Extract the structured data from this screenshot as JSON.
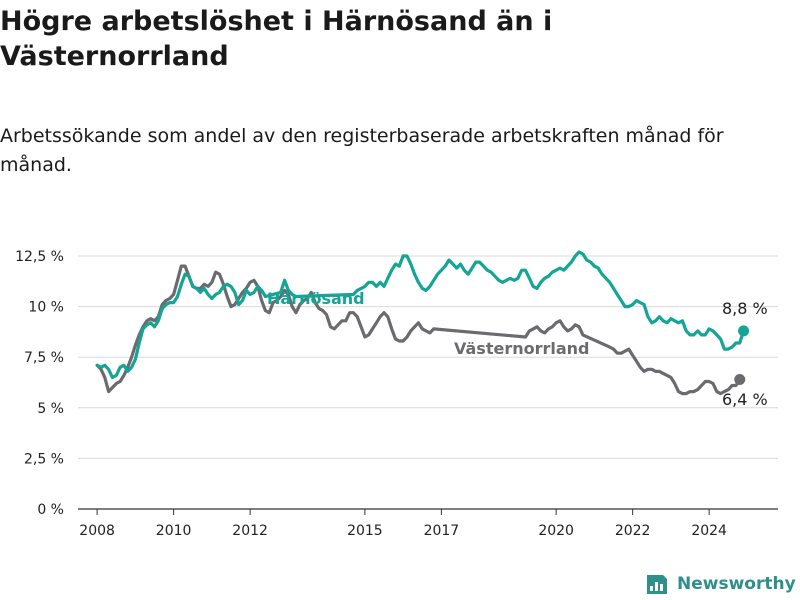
{
  "title": "Högre arbetslöshet i Härnösand än i Västernorrland",
  "subtitle": "Arbetssökande som andel av den registerbaserade arbetskraften månad för månad.",
  "brand": {
    "name": "Newsworthy",
    "icon": "newsworthy-logo-icon"
  },
  "colors": {
    "harnosand": "#14a596",
    "vasternorrland": "#6b6b6f",
    "grid": "#d9d9d9",
    "axis": "#333333"
  },
  "chart_data": {
    "type": "line",
    "title": "",
    "xlabel": "",
    "ylabel": "",
    "xlim": [
      2007.5,
      2025.8
    ],
    "ylim": [
      0,
      12.5
    ],
    "grid": true,
    "y_ticks": [
      {
        "value": 0,
        "label": "0 %"
      },
      {
        "value": 2.5,
        "label": "2,5 %"
      },
      {
        "value": 5,
        "label": "5 %"
      },
      {
        "value": 7.5,
        "label": "7,5 %"
      },
      {
        "value": 10,
        "label": "10 %"
      },
      {
        "value": 12.5,
        "label": "12,5 %"
      }
    ],
    "x_ticks": [
      {
        "value": 2008,
        "label": "2008"
      },
      {
        "value": 2010,
        "label": "2010"
      },
      {
        "value": 2012,
        "label": "2012"
      },
      {
        "value": 2015,
        "label": "2015"
      },
      {
        "value": 2017,
        "label": "2017"
      },
      {
        "value": 2020,
        "label": "2020"
      },
      {
        "value": 2022,
        "label": "2022"
      },
      {
        "value": 2024,
        "label": "2024"
      }
    ],
    "series": [
      {
        "name": "Härnösand",
        "end_label": "8,8 %",
        "points": [
          [
            2008.0,
            7.1
          ],
          [
            2008.1,
            7.0
          ],
          [
            2008.2,
            7.1
          ],
          [
            2008.3,
            6.9
          ],
          [
            2008.4,
            6.5
          ],
          [
            2008.5,
            6.6
          ],
          [
            2008.6,
            7.0
          ],
          [
            2008.7,
            7.1
          ],
          [
            2008.8,
            6.8
          ],
          [
            2008.9,
            7.0
          ],
          [
            2009.0,
            7.4
          ],
          [
            2009.1,
            8.2
          ],
          [
            2009.2,
            8.9
          ],
          [
            2009.3,
            9.1
          ],
          [
            2009.4,
            9.2
          ],
          [
            2009.5,
            9.0
          ],
          [
            2009.6,
            9.3
          ],
          [
            2009.7,
            9.9
          ],
          [
            2009.8,
            10.1
          ],
          [
            2009.9,
            10.2
          ],
          [
            2010.0,
            10.2
          ],
          [
            2010.1,
            10.5
          ],
          [
            2010.2,
            11.1
          ],
          [
            2010.3,
            11.6
          ],
          [
            2010.4,
            11.5
          ],
          [
            2010.5,
            11.0
          ],
          [
            2010.6,
            10.9
          ],
          [
            2010.7,
            10.7
          ],
          [
            2010.8,
            10.9
          ],
          [
            2010.9,
            10.6
          ],
          [
            2011.0,
            10.4
          ],
          [
            2011.1,
            10.6
          ],
          [
            2011.2,
            10.7
          ],
          [
            2011.3,
            11.0
          ],
          [
            2011.4,
            11.1
          ],
          [
            2011.5,
            11.0
          ],
          [
            2011.6,
            10.7
          ],
          [
            2011.7,
            10.1
          ],
          [
            2011.8,
            10.3
          ],
          [
            2011.9,
            10.8
          ],
          [
            2012.0,
            10.6
          ],
          [
            2012.1,
            10.7
          ],
          [
            2012.2,
            11.0
          ],
          [
            2012.3,
            10.8
          ],
          [
            2012.4,
            10.5
          ],
          [
            2012.8,
            10.7
          ],
          [
            2012.9,
            11.3
          ],
          [
            2013.0,
            10.8
          ],
          [
            2013.1,
            10.6
          ],
          [
            2013.2,
            10.5
          ],
          [
            2014.7,
            10.6
          ],
          [
            2014.8,
            10.8
          ],
          [
            2014.9,
            10.9
          ],
          [
            2015.0,
            11.0
          ],
          [
            2015.1,
            11.2
          ],
          [
            2015.2,
            11.2
          ],
          [
            2015.3,
            11.0
          ],
          [
            2015.4,
            11.2
          ],
          [
            2015.5,
            11.0
          ],
          [
            2015.6,
            11.4
          ],
          [
            2015.7,
            11.8
          ],
          [
            2015.8,
            12.1
          ],
          [
            2015.9,
            12.0
          ],
          [
            2016.0,
            12.5
          ],
          [
            2016.1,
            12.5
          ],
          [
            2016.2,
            12.1
          ],
          [
            2016.3,
            11.6
          ],
          [
            2016.4,
            11.2
          ],
          [
            2016.5,
            10.9
          ],
          [
            2016.6,
            10.8
          ],
          [
            2016.7,
            11.0
          ],
          [
            2016.8,
            11.3
          ],
          [
            2016.9,
            11.6
          ],
          [
            2017.0,
            11.8
          ],
          [
            2017.1,
            12.0
          ],
          [
            2017.2,
            12.3
          ],
          [
            2017.3,
            12.1
          ],
          [
            2017.4,
            11.9
          ],
          [
            2017.5,
            12.1
          ],
          [
            2017.6,
            11.8
          ],
          [
            2017.7,
            11.6
          ],
          [
            2017.8,
            11.9
          ],
          [
            2017.9,
            12.2
          ],
          [
            2018.0,
            12.2
          ],
          [
            2018.1,
            12.0
          ],
          [
            2018.2,
            11.8
          ],
          [
            2018.3,
            11.7
          ],
          [
            2018.4,
            11.5
          ],
          [
            2018.5,
            11.3
          ],
          [
            2018.6,
            11.2
          ],
          [
            2018.7,
            11.3
          ],
          [
            2018.8,
            11.4
          ],
          [
            2018.9,
            11.3
          ],
          [
            2019.0,
            11.4
          ],
          [
            2019.1,
            11.8
          ],
          [
            2019.2,
            11.8
          ],
          [
            2019.3,
            11.4
          ],
          [
            2019.4,
            11.0
          ],
          [
            2019.5,
            10.9
          ],
          [
            2019.6,
            11.2
          ],
          [
            2019.7,
            11.4
          ],
          [
            2019.8,
            11.5
          ],
          [
            2019.9,
            11.7
          ],
          [
            2020.0,
            11.8
          ],
          [
            2020.1,
            11.9
          ],
          [
            2020.2,
            11.8
          ],
          [
            2020.3,
            12.0
          ],
          [
            2020.4,
            12.2
          ],
          [
            2020.5,
            12.5
          ],
          [
            2020.6,
            12.7
          ],
          [
            2020.7,
            12.6
          ],
          [
            2020.8,
            12.3
          ],
          [
            2020.9,
            12.2
          ],
          [
            2021.0,
            12.0
          ],
          [
            2021.1,
            11.9
          ],
          [
            2021.2,
            11.6
          ],
          [
            2021.3,
            11.4
          ],
          [
            2021.4,
            11.2
          ],
          [
            2021.5,
            10.9
          ],
          [
            2021.6,
            10.6
          ],
          [
            2021.7,
            10.3
          ],
          [
            2021.8,
            10.0
          ],
          [
            2021.9,
            10.0
          ],
          [
            2022.0,
            10.1
          ],
          [
            2022.1,
            10.3
          ],
          [
            2022.2,
            10.2
          ],
          [
            2022.3,
            10.1
          ],
          [
            2022.4,
            9.5
          ],
          [
            2022.5,
            9.2
          ],
          [
            2022.6,
            9.3
          ],
          [
            2022.7,
            9.5
          ],
          [
            2022.8,
            9.3
          ],
          [
            2022.9,
            9.2
          ],
          [
            2023.0,
            9.4
          ],
          [
            2023.1,
            9.3
          ],
          [
            2023.2,
            9.2
          ],
          [
            2023.3,
            9.3
          ],
          [
            2023.4,
            8.8
          ],
          [
            2023.5,
            8.6
          ],
          [
            2023.6,
            8.6
          ],
          [
            2023.7,
            8.8
          ],
          [
            2023.8,
            8.6
          ],
          [
            2023.9,
            8.6
          ],
          [
            2024.0,
            8.9
          ],
          [
            2024.1,
            8.8
          ],
          [
            2024.2,
            8.6
          ],
          [
            2024.3,
            8.4
          ],
          [
            2024.4,
            7.9
          ],
          [
            2024.5,
            7.9
          ],
          [
            2024.6,
            8.0
          ],
          [
            2024.7,
            8.2
          ],
          [
            2024.8,
            8.2
          ],
          [
            2024.9,
            8.8
          ]
        ]
      },
      {
        "name": "Västernorrland",
        "end_label": "6,4 %",
        "points": [
          [
            2008.0,
            7.1
          ],
          [
            2008.1,
            6.9
          ],
          [
            2008.2,
            6.5
          ],
          [
            2008.3,
            5.8
          ],
          [
            2008.4,
            6.0
          ],
          [
            2008.5,
            6.2
          ],
          [
            2008.6,
            6.3
          ],
          [
            2008.7,
            6.6
          ],
          [
            2008.8,
            7.0
          ],
          [
            2008.9,
            7.5
          ],
          [
            2009.0,
            8.1
          ],
          [
            2009.1,
            8.6
          ],
          [
            2009.2,
            9.0
          ],
          [
            2009.3,
            9.3
          ],
          [
            2009.4,
            9.4
          ],
          [
            2009.5,
            9.3
          ],
          [
            2009.6,
            9.5
          ],
          [
            2009.7,
            10.1
          ],
          [
            2009.8,
            10.3
          ],
          [
            2009.9,
            10.4
          ],
          [
            2010.0,
            10.6
          ],
          [
            2010.1,
            11.3
          ],
          [
            2010.2,
            12.0
          ],
          [
            2010.3,
            12.0
          ],
          [
            2010.4,
            11.5
          ],
          [
            2010.5,
            11.0
          ],
          [
            2010.6,
            10.9
          ],
          [
            2010.7,
            10.9
          ],
          [
            2010.8,
            11.1
          ],
          [
            2010.9,
            11.0
          ],
          [
            2011.0,
            11.2
          ],
          [
            2011.1,
            11.7
          ],
          [
            2011.2,
            11.6
          ],
          [
            2011.3,
            11.1
          ],
          [
            2011.4,
            10.5
          ],
          [
            2011.5,
            10.0
          ],
          [
            2011.6,
            10.1
          ],
          [
            2011.7,
            10.4
          ],
          [
            2011.8,
            10.7
          ],
          [
            2011.9,
            10.9
          ],
          [
            2012.0,
            11.2
          ],
          [
            2012.1,
            11.3
          ],
          [
            2012.2,
            11.0
          ],
          [
            2012.3,
            10.3
          ],
          [
            2012.4,
            9.8
          ],
          [
            2012.5,
            9.7
          ],
          [
            2012.6,
            10.2
          ],
          [
            2012.7,
            10.3
          ],
          [
            2012.8,
            10.5
          ],
          [
            2012.9,
            10.8
          ],
          [
            2013.0,
            10.6
          ],
          [
            2013.1,
            10.0
          ],
          [
            2013.2,
            9.7
          ],
          [
            2013.3,
            10.1
          ],
          [
            2013.4,
            10.3
          ],
          [
            2013.5,
            10.4
          ],
          [
            2013.6,
            10.7
          ],
          [
            2013.7,
            10.2
          ],
          [
            2013.8,
            9.9
          ],
          [
            2013.9,
            9.8
          ],
          [
            2014.0,
            9.6
          ],
          [
            2014.1,
            9.0
          ],
          [
            2014.2,
            8.9
          ],
          [
            2014.3,
            9.1
          ],
          [
            2014.4,
            9.3
          ],
          [
            2014.5,
            9.3
          ],
          [
            2014.6,
            9.7
          ],
          [
            2014.7,
            9.7
          ],
          [
            2014.8,
            9.5
          ],
          [
            2014.9,
            9.0
          ],
          [
            2015.0,
            8.5
          ],
          [
            2015.1,
            8.6
          ],
          [
            2015.2,
            8.9
          ],
          [
            2015.3,
            9.2
          ],
          [
            2015.4,
            9.5
          ],
          [
            2015.5,
            9.7
          ],
          [
            2015.6,
            9.5
          ],
          [
            2015.7,
            8.9
          ],
          [
            2015.8,
            8.4
          ],
          [
            2015.9,
            8.3
          ],
          [
            2016.0,
            8.3
          ],
          [
            2016.1,
            8.5
          ],
          [
            2016.2,
            8.8
          ],
          [
            2016.3,
            9.0
          ],
          [
            2016.4,
            9.2
          ],
          [
            2016.5,
            8.9
          ],
          [
            2016.6,
            8.8
          ],
          [
            2016.7,
            8.7
          ],
          [
            2016.8,
            8.9
          ],
          [
            2019.2,
            8.5
          ],
          [
            2019.3,
            8.8
          ],
          [
            2019.4,
            8.9
          ],
          [
            2019.5,
            9.0
          ],
          [
            2019.6,
            8.8
          ],
          [
            2019.7,
            8.7
          ],
          [
            2019.8,
            8.9
          ],
          [
            2019.9,
            9.0
          ],
          [
            2020.0,
            9.2
          ],
          [
            2020.1,
            9.3
          ],
          [
            2020.2,
            9.0
          ],
          [
            2020.3,
            8.8
          ],
          [
            2020.4,
            8.9
          ],
          [
            2020.5,
            9.1
          ],
          [
            2020.6,
            9.0
          ],
          [
            2020.7,
            8.6
          ],
          [
            2021.4,
            8.0
          ],
          [
            2021.5,
            7.9
          ],
          [
            2021.6,
            7.7
          ],
          [
            2021.7,
            7.7
          ],
          [
            2021.8,
            7.8
          ],
          [
            2021.9,
            7.9
          ],
          [
            2022.0,
            7.6
          ],
          [
            2022.1,
            7.3
          ],
          [
            2022.2,
            7.0
          ],
          [
            2022.3,
            6.8
          ],
          [
            2022.4,
            6.9
          ],
          [
            2022.5,
            6.9
          ],
          [
            2022.6,
            6.8
          ],
          [
            2022.7,
            6.8
          ],
          [
            2022.8,
            6.7
          ],
          [
            2022.9,
            6.6
          ],
          [
            2023.0,
            6.5
          ],
          [
            2023.1,
            6.2
          ],
          [
            2023.2,
            5.8
          ],
          [
            2023.3,
            5.7
          ],
          [
            2023.4,
            5.7
          ],
          [
            2023.5,
            5.8
          ],
          [
            2023.6,
            5.8
          ],
          [
            2023.7,
            5.9
          ],
          [
            2023.8,
            6.1
          ],
          [
            2023.9,
            6.3
          ],
          [
            2024.0,
            6.3
          ],
          [
            2024.1,
            6.2
          ],
          [
            2024.2,
            5.8
          ],
          [
            2024.3,
            5.7
          ],
          [
            2024.4,
            5.8
          ],
          [
            2024.5,
            5.9
          ],
          [
            2024.6,
            6.1
          ],
          [
            2024.7,
            6.1
          ],
          [
            2024.8,
            6.4
          ]
        ]
      }
    ]
  }
}
